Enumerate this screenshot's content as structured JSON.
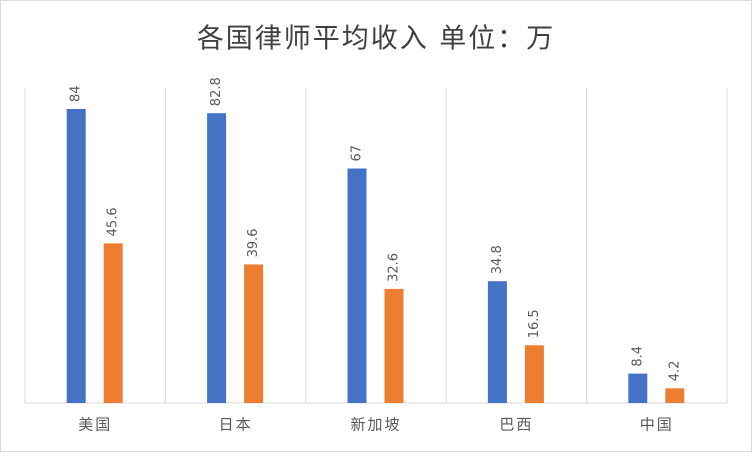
{
  "chart_data": {
    "type": "bar",
    "title": "各国律师平均收入  单位：万",
    "categories": [
      "美国",
      "日本",
      "新加坡",
      "巴西",
      "中国"
    ],
    "series": [
      {
        "color": "#4472c4",
        "values": [
          84,
          82.8,
          67,
          34.8,
          8.4
        ]
      },
      {
        "color": "#ed7d31",
        "values": [
          45.6,
          39.6,
          32.6,
          16.5,
          4.2
        ]
      }
    ],
    "ylim": [
      0,
      90
    ]
  }
}
